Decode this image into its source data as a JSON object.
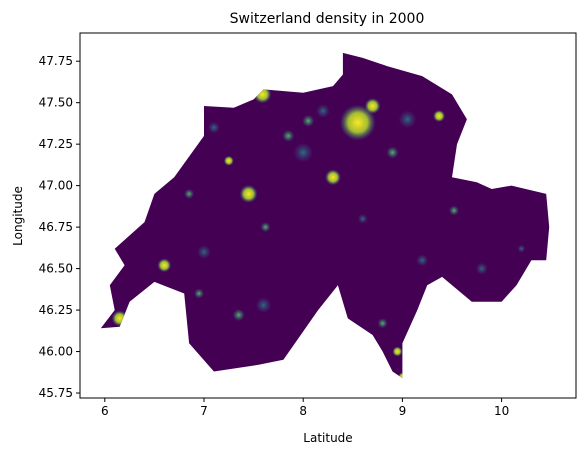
{
  "chart_data": {
    "type": "heatmap",
    "title": "Switzerland density in 2000",
    "xlabel": "Latitude",
    "ylabel": "Longitude",
    "xlim": [
      5.75,
      10.75
    ],
    "ylim": [
      45.72,
      47.92
    ],
    "xticks": [
      6,
      7,
      8,
      9,
      10
    ],
    "yticks": [
      45.75,
      46.0,
      46.25,
      46.5,
      46.75,
      47.0,
      47.25,
      47.5,
      47.75
    ],
    "xtick_labels": [
      "6",
      "7",
      "8",
      "9",
      "10"
    ],
    "ytick_labels": [
      "45.75",
      "46.00",
      "46.25",
      "46.50",
      "46.75",
      "47.00",
      "47.25",
      "47.50",
      "47.75"
    ],
    "colormap": "viridis",
    "colors": {
      "background": "#440154",
      "mid": "#31688e",
      "teal": "#21918c",
      "green": "#5ec962",
      "high": "#fde725"
    },
    "outline": [
      [
        5.96,
        46.14
      ],
      [
        6.1,
        46.25
      ],
      [
        6.05,
        46.4
      ],
      [
        6.2,
        46.52
      ],
      [
        6.1,
        46.62
      ],
      [
        6.4,
        46.78
      ],
      [
        6.5,
        46.95
      ],
      [
        6.7,
        47.05
      ],
      [
        7.0,
        47.3
      ],
      [
        7.0,
        47.48
      ],
      [
        7.3,
        47.47
      ],
      [
        7.5,
        47.52
      ],
      [
        7.6,
        47.58
      ],
      [
        8.0,
        47.56
      ],
      [
        8.3,
        47.6
      ],
      [
        8.4,
        47.67
      ],
      [
        8.4,
        47.8
      ],
      [
        8.6,
        47.77
      ],
      [
        8.85,
        47.72
      ],
      [
        9.2,
        47.66
      ],
      [
        9.5,
        47.55
      ],
      [
        9.65,
        47.4
      ],
      [
        9.55,
        47.25
      ],
      [
        9.5,
        47.05
      ],
      [
        9.75,
        47.02
      ],
      [
        9.9,
        46.98
      ],
      [
        10.1,
        47.0
      ],
      [
        10.45,
        46.95
      ],
      [
        10.48,
        46.75
      ],
      [
        10.45,
        46.55
      ],
      [
        10.3,
        46.55
      ],
      [
        10.15,
        46.4
      ],
      [
        10.0,
        46.3
      ],
      [
        9.7,
        46.3
      ],
      [
        9.4,
        46.45
      ],
      [
        9.25,
        46.4
      ],
      [
        9.15,
        46.25
      ],
      [
        9.0,
        46.05
      ],
      [
        9.0,
        45.84
      ],
      [
        8.9,
        45.88
      ],
      [
        8.8,
        46.0
      ],
      [
        8.7,
        46.1
      ],
      [
        8.45,
        46.2
      ],
      [
        8.35,
        46.4
      ],
      [
        8.15,
        46.25
      ],
      [
        7.8,
        45.95
      ],
      [
        7.55,
        45.92
      ],
      [
        7.1,
        45.88
      ],
      [
        6.85,
        46.05
      ],
      [
        6.8,
        46.35
      ],
      [
        6.5,
        46.42
      ],
      [
        6.25,
        46.3
      ],
      [
        6.15,
        46.15
      ]
    ],
    "hotspots": [
      {
        "x": 8.55,
        "y": 47.38,
        "r": 0.18,
        "level": "high"
      },
      {
        "x": 8.7,
        "y": 47.48,
        "r": 0.08,
        "level": "high"
      },
      {
        "x": 7.59,
        "y": 47.55,
        "r": 0.09,
        "level": "high"
      },
      {
        "x": 6.15,
        "y": 46.2,
        "r": 0.08,
        "level": "high"
      },
      {
        "x": 6.6,
        "y": 46.52,
        "r": 0.07,
        "level": "high"
      },
      {
        "x": 7.45,
        "y": 46.95,
        "r": 0.09,
        "level": "high"
      },
      {
        "x": 8.3,
        "y": 47.05,
        "r": 0.08,
        "level": "high"
      },
      {
        "x": 9.37,
        "y": 47.42,
        "r": 0.06,
        "level": "high"
      },
      {
        "x": 8.95,
        "y": 46.0,
        "r": 0.05,
        "level": "high"
      },
      {
        "x": 9.0,
        "y": 45.85,
        "r": 0.04,
        "level": "high"
      },
      {
        "x": 7.25,
        "y": 47.15,
        "r": 0.05,
        "level": "high"
      },
      {
        "x": 8.05,
        "y": 47.39,
        "r": 0.06,
        "level": "green"
      },
      {
        "x": 7.85,
        "y": 47.3,
        "r": 0.06,
        "level": "green"
      },
      {
        "x": 8.9,
        "y": 47.2,
        "r": 0.06,
        "level": "green"
      },
      {
        "x": 9.52,
        "y": 46.85,
        "r": 0.05,
        "level": "green"
      },
      {
        "x": 7.35,
        "y": 46.22,
        "r": 0.06,
        "level": "green"
      },
      {
        "x": 6.95,
        "y": 46.35,
        "r": 0.05,
        "level": "green"
      },
      {
        "x": 6.85,
        "y": 46.95,
        "r": 0.05,
        "level": "green"
      },
      {
        "x": 7.62,
        "y": 46.75,
        "r": 0.05,
        "level": "green"
      },
      {
        "x": 8.8,
        "y": 46.17,
        "r": 0.05,
        "level": "green"
      },
      {
        "x": 8.2,
        "y": 47.45,
        "r": 0.07,
        "level": "teal"
      },
      {
        "x": 7.0,
        "y": 46.6,
        "r": 0.07,
        "level": "teal"
      },
      {
        "x": 7.6,
        "y": 46.28,
        "r": 0.08,
        "level": "teal"
      },
      {
        "x": 9.05,
        "y": 47.4,
        "r": 0.09,
        "level": "teal"
      },
      {
        "x": 8.0,
        "y": 47.2,
        "r": 0.1,
        "level": "teal"
      },
      {
        "x": 9.2,
        "y": 46.55,
        "r": 0.06,
        "level": "teal"
      },
      {
        "x": 9.8,
        "y": 46.5,
        "r": 0.06,
        "level": "teal"
      },
      {
        "x": 10.2,
        "y": 46.62,
        "r": 0.04,
        "level": "teal"
      },
      {
        "x": 8.6,
        "y": 46.8,
        "r": 0.05,
        "level": "teal"
      },
      {
        "x": 7.1,
        "y": 47.35,
        "r": 0.06,
        "level": "teal"
      }
    ]
  }
}
